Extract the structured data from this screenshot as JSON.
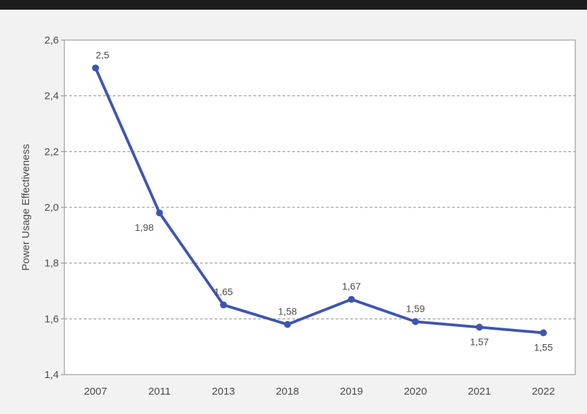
{
  "colors": {
    "line": "#3f55b0",
    "grid": "#8a8a8a",
    "frame": "#8a8a8a",
    "text": "#4a4a4a",
    "plot_background": "#ffffff"
  },
  "chart_data": {
    "type": "line",
    "title": "",
    "xlabel": "",
    "ylabel": "Power Usage Effectiveness",
    "categories": [
      "2007",
      "2011",
      "2013",
      "2018",
      "2019",
      "2020",
      "2021",
      "2022"
    ],
    "series": [
      {
        "values": [
          2.5,
          1.98,
          1.65,
          1.58,
          1.67,
          1.59,
          1.57,
          1.55
        ],
        "labels": [
          "2,5",
          "1,98",
          "1,65",
          "1,58",
          "1,67",
          "1,59",
          "1,57",
          "1,55"
        ]
      }
    ],
    "label_placement": [
      "above",
      "below",
      "above",
      "above",
      "above",
      "above",
      "below",
      "below"
    ],
    "ylim": [
      1.4,
      2.6
    ],
    "yticks": [
      {
        "value": 1.4,
        "label": "1,4"
      },
      {
        "value": 1.6,
        "label": "1,6"
      },
      {
        "value": 1.8,
        "label": "1,8"
      },
      {
        "value": 2.0,
        "label": "2,0"
      },
      {
        "value": 2.2,
        "label": "2,2"
      },
      {
        "value": 2.4,
        "label": "2,4"
      },
      {
        "value": 2.6,
        "label": "2,6"
      }
    ],
    "grid": true,
    "grid_style": "dashed",
    "legend": "none"
  }
}
